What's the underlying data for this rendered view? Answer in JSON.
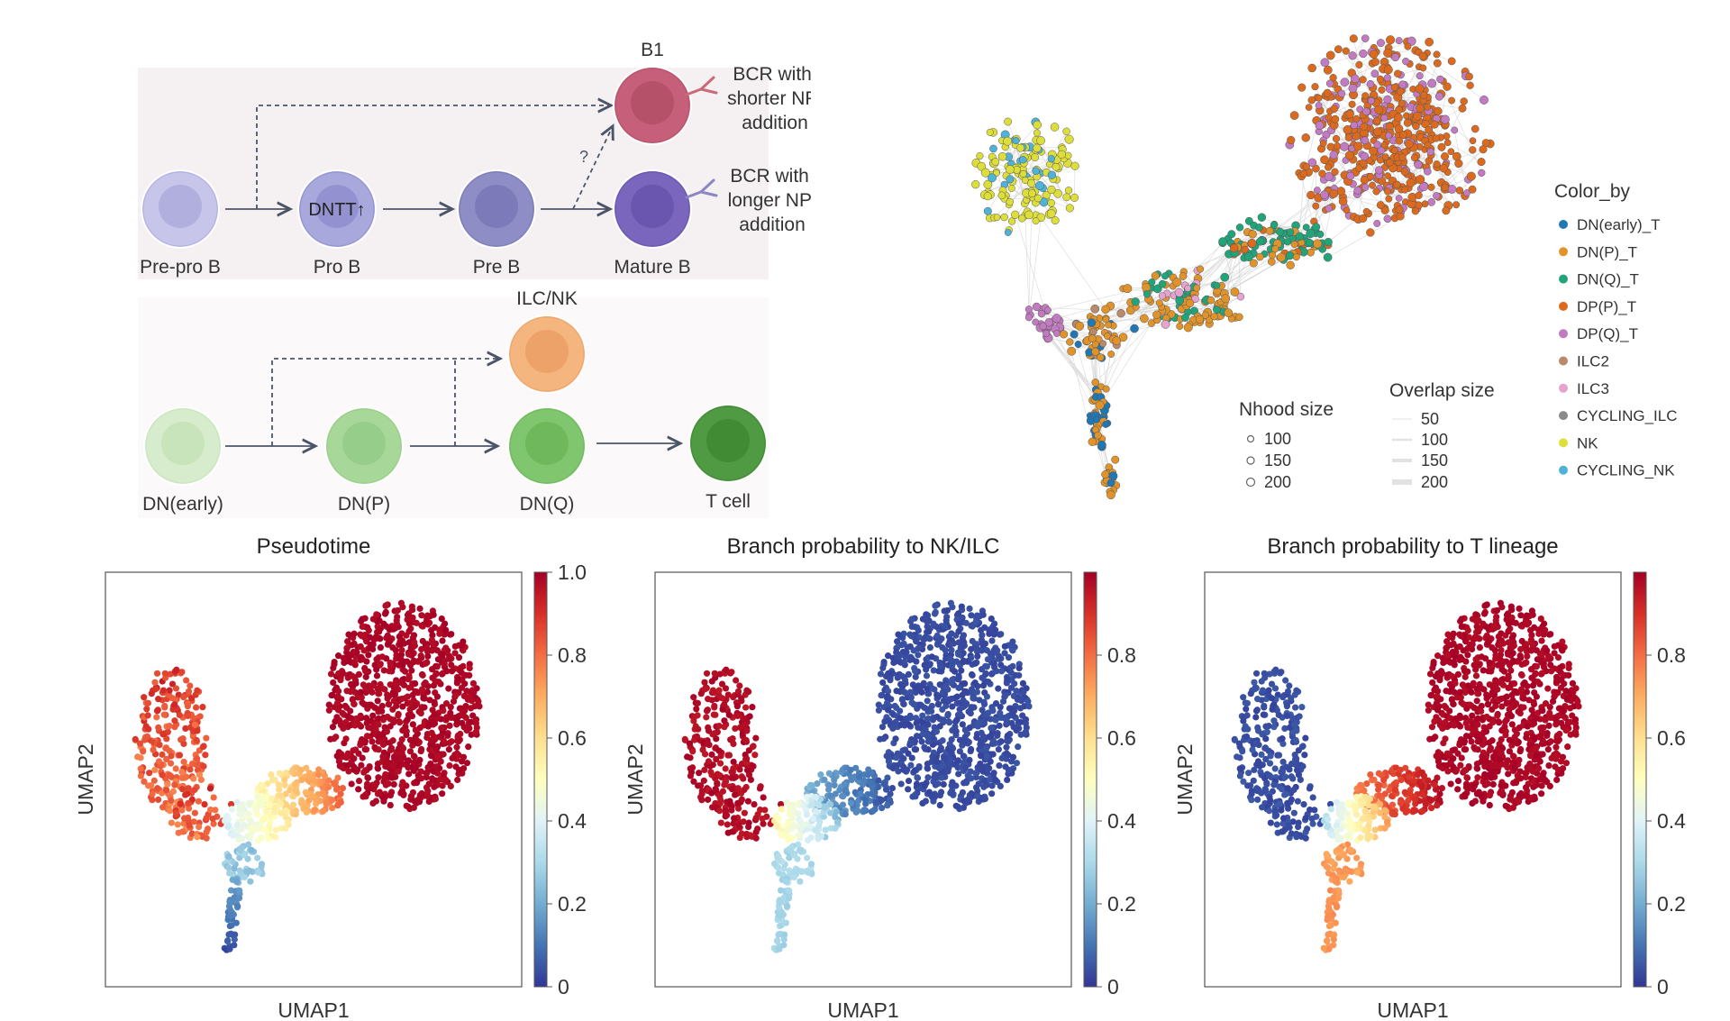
{
  "lineage_diagram": {
    "b_panel": {
      "cells": [
        {
          "id": "pre-pro-b",
          "label": "Pre-pro B",
          "color": "#c7c6ea",
          "core": "#a9a7d8"
        },
        {
          "id": "pro-b",
          "label": "Pro B",
          "color": "#a9a8dc",
          "core": "#8c8acb",
          "inner": "DNTT↑"
        },
        {
          "id": "pre-b",
          "label": "Pre B",
          "color": "#8f8dc6",
          "core": "#7674b3"
        },
        {
          "id": "mature-b",
          "label": "Mature B",
          "color": "#7a66bd",
          "core": "#6651aa"
        },
        {
          "id": "b1",
          "label": "B1",
          "color": "#c6607a",
          "core": "#b04c66"
        }
      ],
      "question_mark": "?",
      "bcr_short_lines": [
        "BCR with",
        "shorter NP",
        "addition"
      ],
      "bcr_long_lines": [
        "BCR with",
        "longer NP",
        "addition"
      ],
      "bcr_short_color": "#c86a7a",
      "bcr_long_color": "#8d86c3"
    },
    "t_panel": {
      "cells": [
        {
          "id": "dn-early",
          "label": "DN(early)",
          "color": "#d6eccc",
          "core": "#c2e2b4"
        },
        {
          "id": "dn-p",
          "label": "DN(P)",
          "color": "#a8d79a",
          "core": "#92ca84"
        },
        {
          "id": "dn-q",
          "label": "DN(Q)",
          "color": "#7fc66e",
          "core": "#69b457"
        },
        {
          "id": "t-cell",
          "label": "T cell",
          "color": "#4f9a42",
          "core": "#3d8532"
        },
        {
          "id": "ilc-nk",
          "label": "ILC/NK",
          "color": "#f4b57f",
          "core": "#eb9c63"
        }
      ]
    }
  },
  "network_graph": {
    "color_by_title": "Color_by",
    "categories": [
      {
        "label": "DN(early)_T",
        "color": "#1f77b4"
      },
      {
        "label": "DN(P)_T",
        "color": "#e0932a"
      },
      {
        "label": "DN(Q)_T",
        "color": "#21a47a"
      },
      {
        "label": "DP(P)_T",
        "color": "#db6a1f"
      },
      {
        "label": "DP(Q)_T",
        "color": "#c27ac0"
      },
      {
        "label": "ILC2",
        "color": "#b88a6a"
      },
      {
        "label": "ILC3",
        "color": "#e7a3cf"
      },
      {
        "label": "CYCLING_ILC",
        "color": "#8a8a8a"
      },
      {
        "label": "NK",
        "color": "#dede3a"
      },
      {
        "label": "CYCLING_NK",
        "color": "#4eb3d9"
      }
    ],
    "nhood_title": "Nhood size",
    "nhood_sizes": [
      "100",
      "150",
      "200"
    ],
    "overlap_title": "Overlap size",
    "overlap_sizes": [
      "50",
      "100",
      "150",
      "200"
    ]
  },
  "chart_data": [
    {
      "type": "scatter",
      "title": "Pseudotime",
      "xlabel": "UMAP1",
      "ylabel": "UMAP2",
      "colorbar": {
        "min": 0,
        "max": 1.0,
        "ticks": [
          "1.0",
          "0.8",
          "0.6",
          "0.4",
          "0.2",
          "0"
        ],
        "colormap": "RdYlBu_r"
      },
      "regions": [
        {
          "name": "left lobe (NK/ILC)",
          "value": 0.85
        },
        {
          "name": "central stem",
          "value": 0.5
        },
        {
          "name": "lower tail start",
          "value": 0.25
        },
        {
          "name": "lower tail tip",
          "value": 0.02
        },
        {
          "name": "right cluster (T lineage)",
          "value": 0.98
        }
      ]
    },
    {
      "type": "scatter",
      "title": "Branch probability to NK/ILC",
      "xlabel": "UMAP1",
      "ylabel": "UMAP2",
      "colorbar": {
        "min": 0,
        "max": 1.0,
        "ticks": [
          "0.8",
          "0.6",
          "0.4",
          "0.2",
          "0"
        ],
        "colormap": "RdYlBu_r"
      },
      "regions": [
        {
          "name": "left lobe (NK/ILC)",
          "value": 0.97
        },
        {
          "name": "central stem",
          "value": 0.35
        },
        {
          "name": "lower tail",
          "value": 0.28
        },
        {
          "name": "right cluster (T lineage)",
          "value": 0.02
        }
      ]
    },
    {
      "type": "scatter",
      "title": "Branch probability to T lineage",
      "xlabel": "UMAP1",
      "ylabel": "UMAP2",
      "colorbar": {
        "min": 0,
        "max": 1.0,
        "ticks": [
          "0.8",
          "0.6",
          "0.4",
          "0.2",
          "0"
        ],
        "colormap": "RdYlBu_r"
      },
      "regions": [
        {
          "name": "left lobe (NK/ILC)",
          "value": 0.02
        },
        {
          "name": "central stem",
          "value": 0.6
        },
        {
          "name": "lower tail",
          "value": 0.72
        },
        {
          "name": "right cluster (T lineage)",
          "value": 0.98
        }
      ]
    }
  ]
}
